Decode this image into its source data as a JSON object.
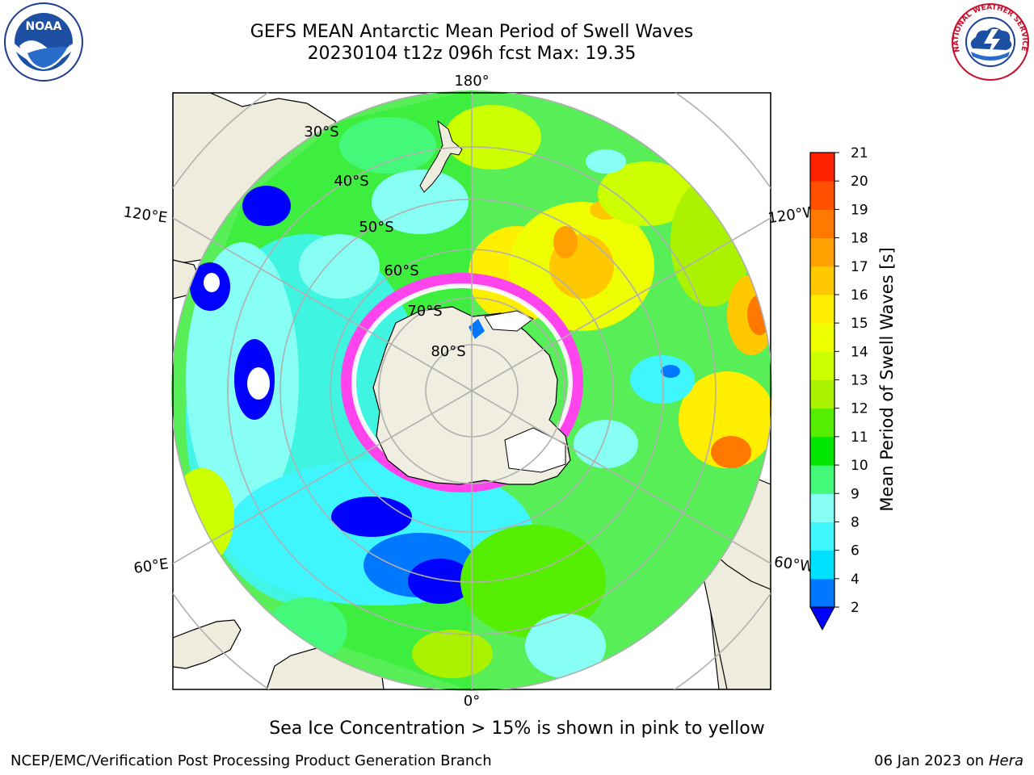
{
  "header": {
    "title_line1": "GEFS MEAN Antarctic Mean Period of Swell Waves",
    "title_line2": "20230104 t12z 096h fcst   Max: 19.35"
  },
  "logos": {
    "left": {
      "text": "NOAA",
      "icon": "noaa-logo"
    },
    "right": {
      "text": "NATIONAL WEATHER SERVICE",
      "icon": "nws-logo"
    }
  },
  "map": {
    "projection": "south-polar-stereographic",
    "lon_labels": {
      "top": "180°",
      "bottom": "0°",
      "upper_left": "120°E",
      "upper_right": "120°W",
      "lower_left": "60°E",
      "lower_right": "60°W"
    },
    "lat_labels": [
      "30°S",
      "40°S",
      "50°S",
      "60°S",
      "70°S",
      "80°S"
    ],
    "colors": {
      "land": "#eeecdc",
      "antarctica": "#efeee0",
      "gridline": "#b0b0b0",
      "sea_ice": "#ff44ee"
    }
  },
  "colorbar": {
    "title": "Mean Period of Swell Waves [s]",
    "ticks": [
      "2",
      "4",
      "6",
      "8",
      "9",
      "10",
      "11",
      "12",
      "13",
      "14",
      "15",
      "16",
      "17",
      "18",
      "19",
      "20",
      "21"
    ],
    "colors": [
      "#0077ff",
      "#00e0ff",
      "#3ff6ff",
      "#88fff4",
      "#44f87a",
      "#00e600",
      "#55ee00",
      "#aaf200",
      "#ccff00",
      "#eeff00",
      "#ffee00",
      "#ffc800",
      "#ffa000",
      "#ff7800",
      "#ff5000",
      "#ff2000"
    ],
    "under_color": "#0000ff"
  },
  "caption": "Sea Ice Concentration > 15% is shown in pink to yellow",
  "footer": {
    "left": "NCEP/EMC/Verification Post Processing Product Generation Branch",
    "right_date": "06 Jan 2023 on ",
    "right_host": "Hera"
  }
}
